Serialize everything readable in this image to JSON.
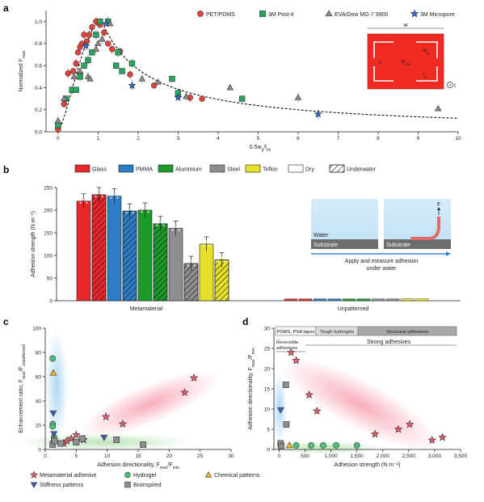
{
  "chart_data": [
    {
      "panel": "a",
      "type": "scatter",
      "xlabel": "0.5w_p/l_ch",
      "ylabel": "Normalized F_max",
      "xlim": [
        -0.3,
        10
      ],
      "ylim": [
        0,
        1.1
      ],
      "xticks": [
        0,
        1,
        2,
        3,
        4,
        5,
        6,
        7,
        8,
        9,
        10
      ],
      "yticks": [
        0,
        0.2,
        0.4,
        0.6,
        0.8,
        1.0
      ],
      "legend": [
        "PET/PDMS",
        "3M Post-it",
        "EVA/Dow MG-7 9900",
        "3M Micropore"
      ],
      "legend_position": "top-right",
      "inset_labels": {
        "w": "w",
        "wp": "w_p",
        "wcut": "w_cut",
        "lp": "l_p",
        "s": "s",
        "t": "t"
      },
      "series": [
        {
          "name": "PET/PDMS",
          "color": "#e8413c",
          "marker": "circle",
          "points": [
            [
              0,
              0.02
            ],
            [
              0.15,
              0.25
            ],
            [
              0.25,
              0.53
            ],
            [
              0.38,
              0.55
            ],
            [
              0.45,
              0.62
            ],
            [
              0.5,
              0.72
            ],
            [
              0.55,
              0.77
            ],
            [
              0.6,
              0.8
            ],
            [
              0.65,
              0.88
            ],
            [
              0.72,
              0.82
            ],
            [
              0.78,
              0.88
            ],
            [
              0.85,
              0.95
            ],
            [
              0.95,
              1.0
            ],
            [
              1.05,
              0.97
            ],
            [
              1.15,
              0.9
            ],
            [
              1.25,
              0.8
            ],
            [
              1.35,
              0.75
            ],
            [
              1.55,
              0.73
            ],
            [
              1.8,
              0.52
            ],
            [
              2.4,
              0.42
            ],
            [
              3.3,
              0.31
            ],
            [
              3.6,
              0.3
            ]
          ]
        },
        {
          "name": "3M Post-it",
          "color": "#27a661",
          "marker": "square",
          "points": [
            [
              0,
              0.06
            ],
            [
              0.2,
              0.3
            ],
            [
              0.35,
              0.38
            ],
            [
              0.45,
              0.38
            ],
            [
              0.55,
              0.5
            ],
            [
              0.65,
              0.6
            ],
            [
              0.75,
              0.65
            ],
            [
              0.85,
              0.72
            ],
            [
              0.95,
              0.88
            ],
            [
              1.05,
              1.0
            ],
            [
              1.25,
              1.0
            ],
            [
              1.45,
              0.6
            ],
            [
              1.5,
              0.72
            ],
            [
              1.6,
              0.55
            ],
            [
              1.85,
              0.62
            ],
            [
              2.85,
              0.48
            ],
            [
              3.0,
              0.35
            ],
            [
              4.6,
              0.3
            ]
          ]
        },
        {
          "name": "EVA/Dow MG-7 9900",
          "color": "#8c8c8c",
          "marker": "triangle",
          "points": [
            [
              0,
              0.1
            ],
            [
              0.15,
              0.3
            ],
            [
              0.4,
              0.5
            ],
            [
              0.55,
              0.55
            ],
            [
              0.75,
              0.5
            ],
            [
              0.8,
              0.48
            ],
            [
              0.95,
              0.75
            ],
            [
              1.0,
              0.8
            ],
            [
              1.1,
              0.84
            ],
            [
              1.3,
              0.98
            ],
            [
              2.1,
              0.48
            ],
            [
              2.5,
              0.45
            ],
            [
              3.2,
              0.32
            ],
            [
              4.3,
              0.4
            ],
            [
              6.0,
              0.31
            ],
            [
              9.5,
              0.21
            ]
          ]
        },
        {
          "name": "3M Micropore",
          "color": "#2f6fd8",
          "marker": "star",
          "points": [
            [
              0.7,
              0.78
            ],
            [
              1.2,
              0.98
            ],
            [
              1.85,
              0.42
            ],
            [
              3.0,
              0.31
            ],
            [
              6.5,
              0.16
            ]
          ]
        }
      ],
      "fit_curve": "dashed"
    },
    {
      "panel": "b",
      "type": "bar",
      "ylabel": "Adhesion strength (N m⁻¹)",
      "ylim": [
        0,
        250
      ],
      "yticks": [
        0,
        50,
        100,
        150,
        200,
        250
      ],
      "legend": [
        "Glass",
        "PMMA",
        "Aluminium",
        "Steel",
        "Teflon",
        "Dry",
        "Underwater"
      ],
      "group_labels": [
        "Metamaterial",
        "Unpatterned"
      ],
      "inset_text": {
        "water": "Water",
        "substrate1": "Substrate",
        "substrate2": "Substrate",
        "force": "F",
        "caption": "Apply and measure adhesion under water"
      },
      "series": [
        {
          "name": "Glass",
          "color": "#e8272b",
          "dry": 220,
          "underwater": 234
        },
        {
          "name": "PMMA",
          "color": "#2c7cc6",
          "dry": 231,
          "underwater": 198
        },
        {
          "name": "Aluminium",
          "color": "#1c9a2a",
          "dry": 200,
          "underwater": 170
        },
        {
          "name": "Steel",
          "color": "#8e8e8e",
          "dry": 160,
          "underwater": 82
        },
        {
          "name": "Teflon",
          "color": "#e6e02a",
          "dry": 125,
          "underwater": 90
        }
      ],
      "unpatterned_values": [
        4,
        4,
        4,
        4,
        4,
        4,
        4,
        4,
        4,
        4
      ]
    },
    {
      "panel": "c",
      "type": "scatter",
      "xlabel": "Adhesion directionality, F_max/F_min",
      "ylabel": "Enhancement ratio, F_max/F_unpatterned",
      "xlim": [
        0,
        30
      ],
      "ylim": [
        0,
        100
      ],
      "xticks": [
        0,
        5,
        10,
        15,
        20,
        25,
        30
      ],
      "yticks": [
        0,
        20,
        40,
        60,
        80,
        100
      ],
      "legend": [
        "Metamaterial adhesive",
        "Hydrogel",
        "Chemical patterns",
        "Stiffness patterns",
        "Bioinspired"
      ],
      "series": [
        {
          "name": "Metamaterial adhesive",
          "color": "#e85a6a",
          "marker": "star",
          "points": [
            [
              3,
              5
            ],
            [
              3.5,
              7
            ],
            [
              4.2,
              9
            ],
            [
              5,
              12
            ],
            [
              6.2,
              8
            ],
            [
              9.8,
              27
            ],
            [
              12.5,
              21
            ],
            [
              22.5,
              47
            ],
            [
              24,
              59
            ]
          ]
        },
        {
          "name": "Hydrogel",
          "color": "#4fc07a",
          "marker": "circle",
          "points": [
            [
              1.2,
              75
            ],
            [
              1.2,
              21
            ],
            [
              1.2,
              19
            ],
            [
              1.3,
              6
            ],
            [
              1.4,
              10
            ]
          ]
        },
        {
          "name": "Chemical patterns",
          "color": "#f2b829",
          "marker": "triangle",
          "points": [
            [
              1.3,
              63
            ],
            [
              1.4,
              8
            ]
          ]
        },
        {
          "name": "Stiffness patterns",
          "color": "#3e5fae",
          "marker": "triangle-down",
          "points": [
            [
              1.3,
              30
            ],
            [
              1.4,
              13
            ],
            [
              9.5,
              10
            ]
          ]
        },
        {
          "name": "Bioinspired",
          "color": "#8e8e8e",
          "marker": "square",
          "points": [
            [
              1.2,
              4
            ],
            [
              1.5,
              7
            ],
            [
              2.5,
              5
            ],
            [
              5,
              6
            ],
            [
              6,
              9
            ],
            [
              11.5,
              8
            ],
            [
              15.8,
              4
            ]
          ]
        }
      ]
    },
    {
      "panel": "d",
      "type": "scatter",
      "xlabel": "Adhesion strength (N m⁻¹)",
      "ylabel": "Adhesion directionality, F_max/F_min",
      "xlim": [
        -100,
        3500
      ],
      "ylim": [
        0,
        30
      ],
      "xticks": [
        0,
        500,
        1000,
        1500,
        2000,
        2500,
        3000,
        3500
      ],
      "xtick_labels": [
        "0",
        "500",
        "1,000",
        "1,500",
        "2,000",
        "2,500",
        "3,000",
        "3,500"
      ],
      "yticks": [
        0,
        5,
        10,
        15,
        20,
        25,
        30
      ],
      "bands": [
        "PDMS, PSA tapes",
        "Tough hydrogels",
        "Structural adhesives"
      ],
      "bracket_labels": [
        "Reversible adhesives",
        "Strong adhesives"
      ],
      "series": [
        {
          "name": "Metamaterial adhesive",
          "color": "#e85a6a",
          "marker": "star",
          "points": [
            [
              230,
              24
            ],
            [
              330,
              22
            ],
            [
              580,
              13.5
            ],
            [
              730,
              9.5
            ],
            [
              1850,
              3.8
            ],
            [
              2300,
              5
            ],
            [
              2520,
              6.2
            ],
            [
              2950,
              2.3
            ],
            [
              3150,
              3
            ]
          ]
        },
        {
          "name": "Hydrogel",
          "color": "#4fc07a",
          "marker": "circle",
          "points": [
            [
              330,
              1
            ],
            [
              620,
              1
            ],
            [
              850,
              1
            ],
            [
              1100,
              1
            ],
            [
              1500,
              1
            ],
            [
              30,
              1
            ]
          ]
        },
        {
          "name": "Chemical patterns",
          "color": "#f2b829",
          "marker": "triangle",
          "points": [
            [
              200,
              1
            ]
          ]
        },
        {
          "name": "Stiffness patterns",
          "color": "#3e5fae",
          "marker": "triangle-down",
          "points": [
            [
              30,
              9.8
            ]
          ]
        },
        {
          "name": "Bioinspired",
          "color": "#8e8e8e",
          "marker": "square",
          "points": [
            [
              130,
              16
            ],
            [
              140,
              6.2
            ],
            [
              30,
              1.5
            ],
            [
              40,
              0.8
            ]
          ]
        }
      ]
    }
  ]
}
